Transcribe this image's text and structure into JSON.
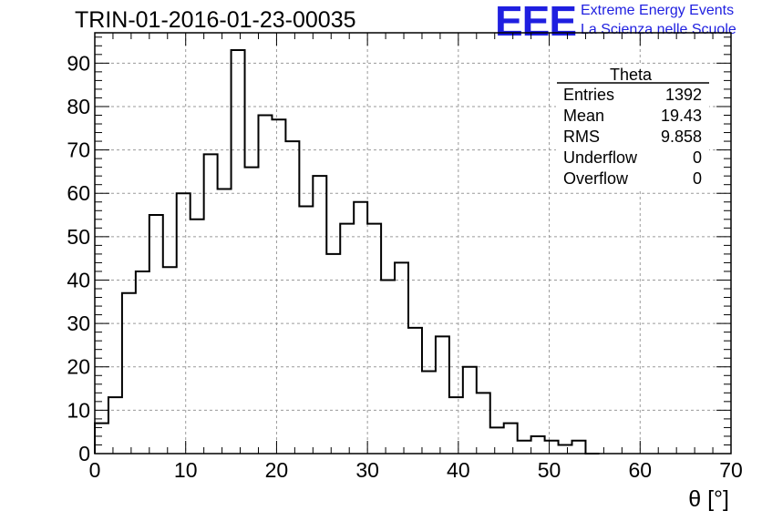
{
  "header": {
    "run_title": "TRIN-01-2016-01-23-00035",
    "logo_text": "EEE",
    "logo_line1": "Extreme Energy Events",
    "logo_line2": "La Scienza nelle Scuole",
    "logo_color": "#1f1fe0"
  },
  "stats_box": {
    "name": "Theta",
    "rows": [
      {
        "label": "Entries",
        "value": "1392"
      },
      {
        "label": "Mean",
        "value": "19.43"
      },
      {
        "label": "RMS",
        "value": "9.858"
      },
      {
        "label": "Underflow",
        "value": "0"
      },
      {
        "label": "Overflow",
        "value": "0"
      }
    ]
  },
  "chart_data": {
    "type": "bar",
    "style": "step-histogram",
    "title": "",
    "xlabel": "θ [°]",
    "ylabel": "",
    "xlim": [
      0,
      70
    ],
    "ylim": [
      0,
      97
    ],
    "grid": true,
    "bin_width": 1.5,
    "bin_edges_start": 0,
    "values": [
      7,
      13,
      37,
      42,
      55,
      43,
      60,
      54,
      69,
      61,
      93,
      66,
      78,
      77,
      72,
      57,
      64,
      46,
      53,
      58,
      53,
      40,
      44,
      29,
      19,
      27,
      13,
      20,
      14,
      6,
      7,
      3,
      4,
      3,
      2,
      3,
      0
    ],
    "x_ticks": [
      0,
      10,
      20,
      30,
      40,
      50,
      60,
      70
    ],
    "y_ticks": [
      0,
      10,
      20,
      30,
      40,
      50,
      60,
      70,
      80,
      90
    ],
    "line_color": "#000000",
    "grid_color": "#9a9a9a"
  }
}
